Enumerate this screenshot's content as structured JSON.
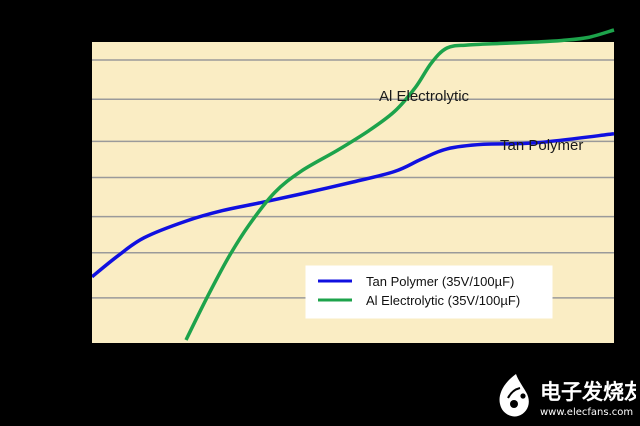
{
  "chart_data": {
    "type": "line",
    "title": "",
    "xlabel": "",
    "ylabel": "",
    "xlim": [
      0,
      100
    ],
    "ylim": [
      0,
      100
    ],
    "grid": true,
    "y_gridlines": [
      15,
      30,
      42,
      55,
      67,
      81,
      94
    ],
    "plot_background": "#FAEDC4",
    "legend_placement": "bottom-right",
    "series": [
      {
        "name": "Tan Polymer (35V/100µF)",
        "color": "#1010E0",
        "x": [
          0,
          5,
          10,
          18,
          25,
          32,
          40,
          50,
          58,
          63,
          68,
          75,
          85,
          100
        ],
        "y": [
          22,
          29,
          35,
          40.5,
          44,
          46.5,
          49.5,
          53.5,
          57,
          61,
          64.5,
          66,
          66.5,
          69.5
        ]
      },
      {
        "name": "Al Electrolytic (35V/100µF)",
        "color": "#1DA34B",
        "x": [
          18,
          22,
          26,
          30,
          35,
          40,
          47,
          53,
          58,
          62,
          65,
          68,
          72,
          78,
          85,
          90,
          95,
          100
        ],
        "y": [
          1,
          15,
          28,
          39,
          50,
          57,
          64,
          70.5,
          77,
          85,
          93,
          98,
          99,
          99.5,
          100,
          100.5,
          101.5,
          104
        ]
      }
    ],
    "annotations": [
      {
        "text": "Al Electrolytic",
        "series": 1
      },
      {
        "text": "Tan Polymer",
        "series": 0
      }
    ]
  },
  "watermark": {
    "text": "电子发烧友",
    "url": "www.elecfans.com"
  }
}
